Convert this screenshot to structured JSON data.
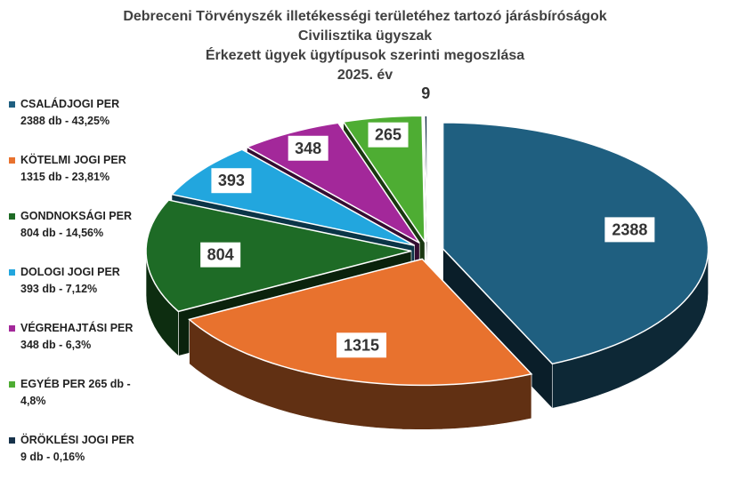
{
  "chart_data": {
    "type": "pie",
    "title_lines": [
      "Debreceni Törvényszék illetékességi területéhez tartozó járásbíróságok",
      "Civilisztika ügyszak",
      "Érkezett ügyek ügytípusok szerinti megoszlása",
      "2025. év"
    ],
    "slices": [
      {
        "name": "CSALÁDJOGI PER",
        "value": 2388,
        "percent": "43,25%",
        "color": "#1f5f80",
        "legend_lines": [
          "CSALÁDJOGI PER",
          "2388 db - 43,25%"
        ],
        "label": "2388"
      },
      {
        "name": "KÖTELMI JOGI PER",
        "value": 1315,
        "percent": "23,81%",
        "color": "#e8722e",
        "legend_lines": [
          "KÖTELMI JOGI PER",
          "1315 db - 23,81%"
        ],
        "label": "1315"
      },
      {
        "name": "GONDNOKSÁGI PER",
        "value": 804,
        "percent": "14,56%",
        "color": "#1e6b26",
        "legend_lines": [
          "GONDNOKSÁGI PER",
          "804 db - 14,56%"
        ],
        "label": "804"
      },
      {
        "name": "DOLOGI JOGI PER",
        "value": 393,
        "percent": "7,12%",
        "color": "#22a6de",
        "legend_lines": [
          "DOLOGI JOGI PER",
          "393 db - 7,12%"
        ],
        "label": "393"
      },
      {
        "name": "VÉGREHAJTÁSI PER",
        "value": 348,
        "percent": "6,3%",
        "color": "#a3289a",
        "legend_lines": [
          "VÉGREHAJTÁSI PER",
          "348 db - 6,3%"
        ],
        "label": "348"
      },
      {
        "name": "EGYÉB PER",
        "value": 265,
        "percent": "4,8%",
        "color": "#4ead33",
        "legend_lines": [
          "EGYÉB PER 265 db -",
          "4,8%"
        ],
        "label": "265"
      },
      {
        "name": "ÖRÖKLÉSI JOGI PER",
        "value": 9,
        "percent": "0,16%",
        "color": "#17324a",
        "legend_lines": [
          "ÖRÖKLÉSI JOGI PER",
          "9 db - 0,16%"
        ],
        "label": "9"
      }
    ],
    "legend_position": "left",
    "style": "3d-exploded-pie"
  }
}
